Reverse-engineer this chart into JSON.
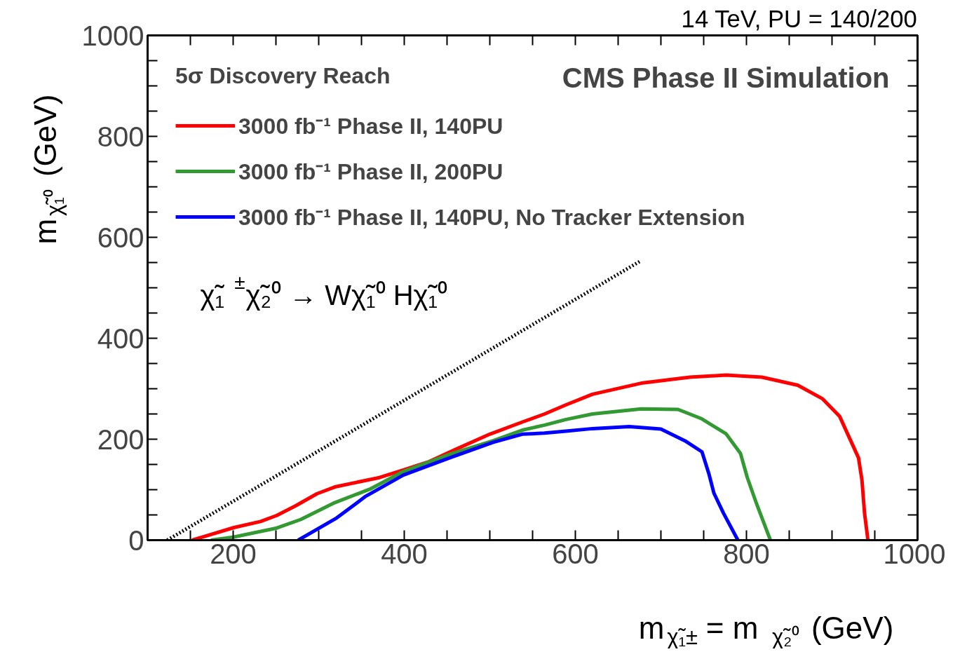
{
  "chart_data": {
    "type": "line",
    "title": "CMS Phase II Simulation",
    "xlabel": "m$_{χ̃₁±}$ = m$_{χ̃₂⁰}$ (GeV)",
    "ylabel": "m$_{χ̃₁⁰}$ (GeV)",
    "legend_title": "5σ Discovery Reach",
    "annotations": [
      "14 TeV, PU = 140/200",
      "χ̃₁$^{±}$χ̃₂⁰ → Wχ̃₁⁰ Hχ̃₁⁰"
    ],
    "xlim": [
      100,
      1000
    ],
    "ylim": [
      0,
      1000
    ],
    "xticks": [
      {
        "value": 150,
        "label": null
      },
      200,
      {
        "value": 250,
        "label": null
      },
      {
        "value": 300,
        "label": null
      },
      {
        "value": 350,
        "label": null
      },
      400,
      {
        "value": 450,
        "label": null
      },
      {
        "value": 500,
        "label": null
      },
      {
        "value": 550,
        "label": null
      },
      600,
      {
        "value": 650,
        "label": null
      },
      {
        "value": 700,
        "label": null
      },
      {
        "value": 750,
        "label": null
      },
      800,
      {
        "value": 850,
        "label": null
      },
      {
        "value": 900,
        "label": null
      },
      {
        "value": 950,
        "label": null
      },
      1000
    ],
    "yticks": [
      0,
      {
        "value": 50,
        "label": null
      },
      {
        "value": 100,
        "label": null
      },
      {
        "value": 150,
        "label": null
      },
      200,
      {
        "value": 250,
        "label": null
      },
      {
        "value": 300,
        "label": null
      },
      {
        "value": 350,
        "label": null
      },
      400,
      {
        "value": 450,
        "label": null
      },
      {
        "value": 500,
        "label": null
      },
      {
        "value": 550,
        "label": null
      },
      600,
      {
        "value": 650,
        "label": null
      },
      {
        "value": 700,
        "label": null
      },
      {
        "value": 750,
        "label": null
      },
      800,
      {
        "value": 850,
        "label": null
      },
      {
        "value": 900,
        "label": null
      },
      {
        "value": 950,
        "label": null
      },
      1000
    ],
    "grid": false,
    "legend": "top left",
    "marker": "none",
    "series": [
      {
        "name": "3000 fb⁻¹ Phase II, 140PU",
        "color": "#ff0000",
        "line_style": "solid",
        "x": [
          152,
          201,
          232,
          251,
          273,
          298,
          320,
          371,
          399,
          428,
          459,
          500,
          538,
          564,
          589,
          620,
          677,
          734,
          776,
          818,
          860,
          889,
          909,
          931,
          935,
          938,
          942
        ],
        "values": [
          0,
          25,
          37,
          49,
          68,
          92,
          106,
          124,
          139,
          155,
          179,
          210,
          234,
          250,
          268,
          289,
          311,
          323,
          327,
          323,
          307,
          280,
          245,
          163,
          119,
          54,
          0
        ]
      },
      {
        "name": "3000 fb⁻¹ Phase II, 200PU",
        "color": "#339933",
        "line_style": "solid",
        "x": [
          174,
          200,
          251,
          279,
          317,
          361,
          399,
          453,
          504,
          538,
          564,
          589,
          620,
          677,
          720,
          747,
          776,
          793,
          801,
          811,
          828
        ],
        "values": [
          0,
          6,
          24,
          41,
          73,
          102,
          136,
          170,
          197,
          218,
          228,
          239,
          250,
          260,
          259,
          241,
          211,
          172,
          124,
          76,
          0
        ]
      },
      {
        "name": "3000 fb⁻¹ Phase II, 140PU, No Tracker Extension",
        "color": "#0000ff",
        "line_style": "solid",
        "x": [
          276,
          321,
          355,
          399,
          453,
          504,
          538,
          564,
          589,
          620,
          663,
          700,
          728,
          748,
          756,
          762,
          773,
          790
        ],
        "values": [
          0,
          44,
          87,
          129,
          163,
          194,
          210,
          212,
          216,
          221,
          225,
          220,
          197,
          175,
          132,
          93,
          54,
          0
        ]
      },
      {
        "color": "#000000",
        "line_style": "dotted",
        "x": [
          123,
          675
        ],
        "values": [
          0,
          552
        ]
      }
    ]
  }
}
